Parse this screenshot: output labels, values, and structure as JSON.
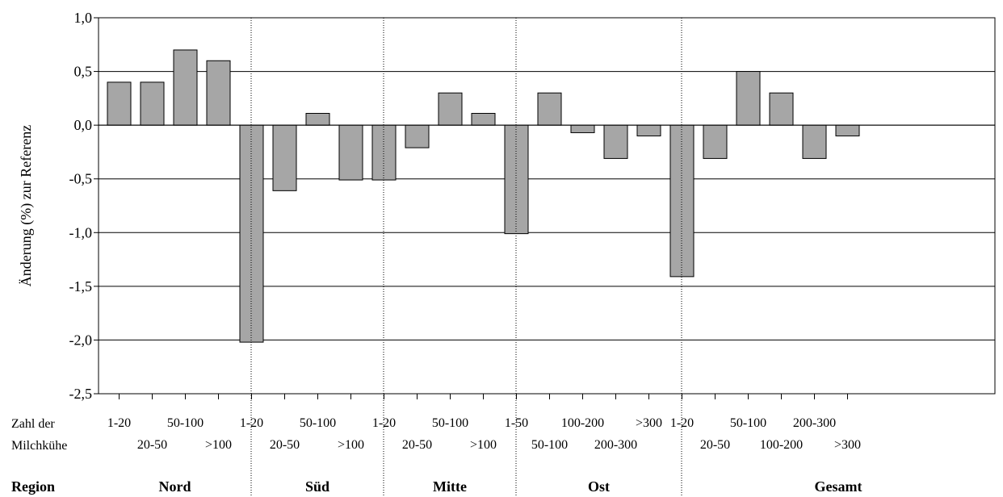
{
  "chart_data": {
    "type": "bar",
    "ylabel": "Änderung (%) zur Referenz",
    "ylim": [
      -2.5,
      1.0
    ],
    "yticks": [
      "1,0",
      "0,5",
      "0,0",
      "-0,5",
      "-1,0",
      "-1,5",
      "-2,0",
      "-2,5"
    ],
    "grid": true,
    "row_labels": {
      "herd_size_line1": "Zahl der",
      "herd_size_line2": "Milchkühe",
      "region": "Region"
    },
    "groups": [
      {
        "region": "Nord",
        "categories": [
          "1-20",
          "20-50",
          "50-100",
          ">100"
        ],
        "values": [
          0.4,
          0.4,
          0.7,
          0.6
        ]
      },
      {
        "region": "Süd",
        "categories": [
          "1-20",
          "20-50",
          "50-100",
          ">100"
        ],
        "values": [
          -2.02,
          -0.61,
          0.11,
          -0.51
        ]
      },
      {
        "region": "Mitte",
        "categories": [
          "1-20",
          "20-50",
          "50-100",
          ">100"
        ],
        "values": [
          -0.51,
          -0.21,
          0.3,
          0.11
        ]
      },
      {
        "region": "Ost",
        "categories": [
          "1-50",
          "50-100",
          "100-200",
          "200-300",
          ">300"
        ],
        "values": [
          -1.01,
          0.3,
          -0.07,
          -0.31,
          -0.1
        ]
      },
      {
        "region": "Gesamt",
        "categories": [
          "1-20",
          "20-50",
          "50-100",
          "100-200",
          "200-300",
          ">300"
        ],
        "values": [
          -1.41,
          -0.31,
          0.5,
          0.3,
          -0.31,
          -0.1
        ]
      }
    ]
  }
}
